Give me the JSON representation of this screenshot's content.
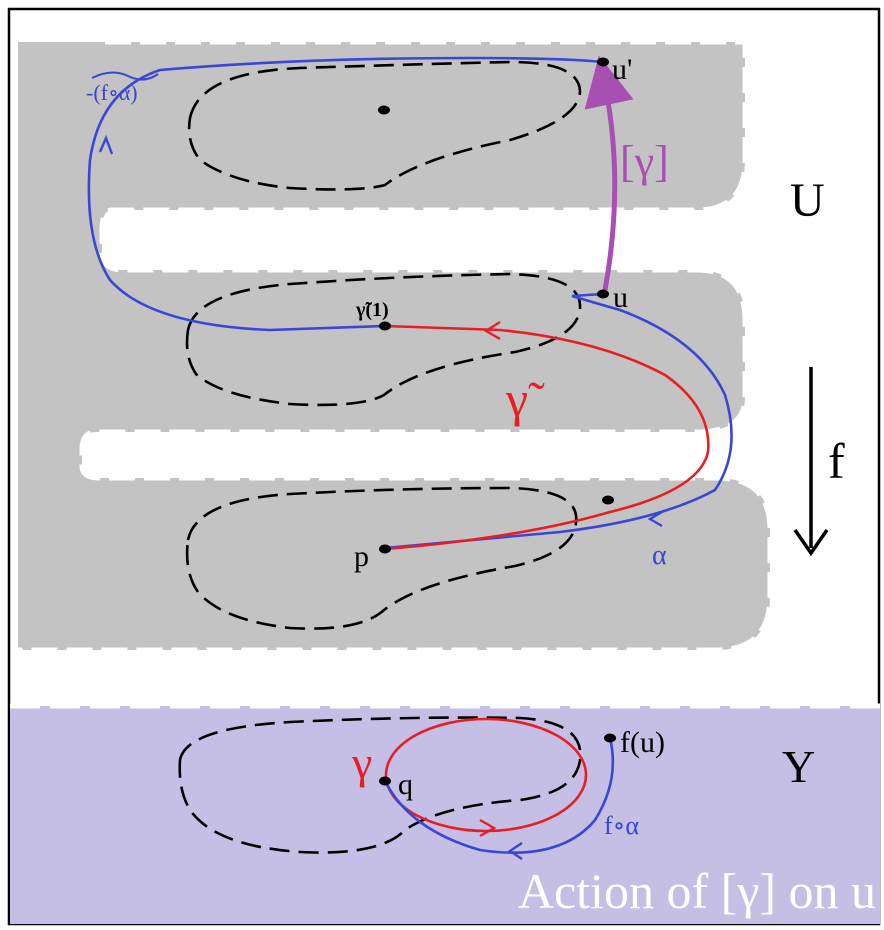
{
  "colors": {
    "U_region": "#c3c3c3",
    "Y_region": "#c5bfe5",
    "alpha_blue": "#3a46d6",
    "gamma_red": "#e81e25",
    "gamma_class_purple": "#a84fb4",
    "frame": "#000000",
    "caption_text": "#ffffff"
  },
  "labels": {
    "U": "U",
    "Y": "Y",
    "f": "f",
    "u_prime": "u'",
    "u": "u",
    "p": "p",
    "alpha": "α",
    "gamma_tilde_1": "γ̃(1)",
    "gamma_tilde": "γ̃",
    "gamma_class": "[γ]",
    "neg_f_alpha_tilde": "-(f∘α)",
    "gamma": "γ",
    "q": "q",
    "f_u": "f(u)",
    "f_alpha": "f∘α"
  },
  "caption": "Action of [γ] on u"
}
